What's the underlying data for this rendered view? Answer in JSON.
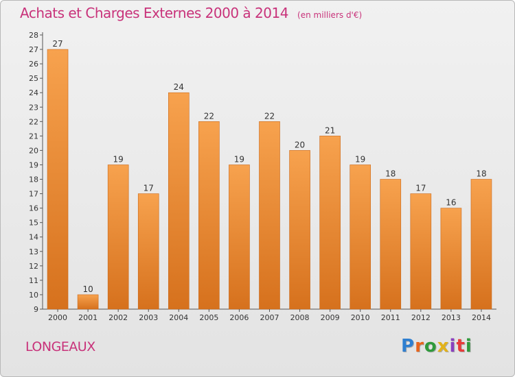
{
  "chart_data": {
    "type": "bar",
    "title": "Achats et Charges Externes 2000 à 2014",
    "subtitle": "(en milliers d'€)",
    "categories": [
      "2000",
      "2001",
      "2002",
      "2003",
      "2004",
      "2005",
      "2006",
      "2007",
      "2008",
      "2009",
      "2010",
      "2011",
      "2012",
      "2013",
      "2014"
    ],
    "values": [
      27,
      10,
      19,
      17,
      24,
      22,
      19,
      22,
      20,
      21,
      19,
      18,
      17,
      16,
      18
    ],
    "ylim": [
      9,
      28
    ],
    "yticks": [
      9,
      10,
      11,
      12,
      13,
      14,
      15,
      16,
      17,
      18,
      19,
      20,
      21,
      22,
      23,
      24,
      25,
      26,
      27,
      28
    ],
    "xlabel": "",
    "ylabel": "",
    "grid": false,
    "legend": "none",
    "bar_color_top": "#f7a24e",
    "bar_color_bottom": "#d6711d"
  },
  "footer": {
    "location": "LONGEAUX",
    "logo_text": "Proxiti",
    "logo_colors": [
      "#2f7fd0",
      "#e8641b",
      "#2f9a3c",
      "#e2b21b",
      "#8a3fbf",
      "#e83a3a",
      "#2f9a3c"
    ]
  }
}
